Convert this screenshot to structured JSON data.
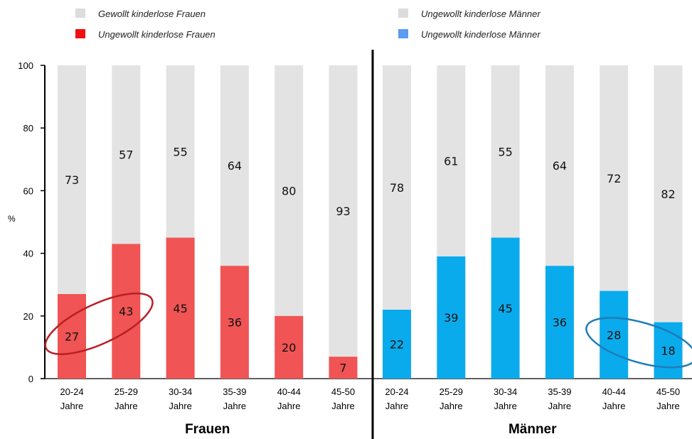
{
  "chart_data": {
    "type": "bar",
    "stacked": true,
    "y_unit": "%",
    "ylim": [
      0,
      100
    ],
    "yticks": [
      0,
      20,
      40,
      60,
      80,
      100
    ],
    "legend": [
      {
        "label": "Gewollt kinderlose Frauen",
        "color": "#dcdcdc"
      },
      {
        "label": "Ungewollt kinderlose Frauen",
        "color": "#ee1111"
      },
      {
        "label": "Ungewollt kinderlose Männer",
        "color": "#dcdcdc"
      },
      {
        "label": "Ungewollt kinderlose Männer",
        "color": "#5b9bf0"
      }
    ],
    "groups": [
      {
        "name": "Frauen",
        "color_lower": "#f05454",
        "color_upper": "#e3e3e3",
        "categories": [
          [
            "20-24",
            "Jahre"
          ],
          [
            "25-29",
            "Jahre"
          ],
          [
            "30-34",
            "Jahre"
          ],
          [
            "35-39",
            "Jahre"
          ],
          [
            "40-44",
            "Jahre"
          ],
          [
            "45-50",
            "Jahre"
          ]
        ],
        "lower_values": [
          27,
          43,
          45,
          36,
          20,
          7
        ],
        "upper_values": [
          73,
          57,
          55,
          64,
          80,
          93
        ],
        "highlight_categories": [
          0,
          1
        ],
        "highlight_color": "#b81f24"
      },
      {
        "name": "Männer",
        "color_lower": "#0aabec",
        "color_upper": "#e3e3e3",
        "categories": [
          [
            "20-24",
            "Jahre"
          ],
          [
            "25-29",
            "Jahre"
          ],
          [
            "30-34",
            "Jahre"
          ],
          [
            "35-39",
            "Jahre"
          ],
          [
            "40-44",
            "Jahre"
          ],
          [
            "45-50",
            "Jahre"
          ]
        ],
        "lower_values": [
          22,
          39,
          45,
          36,
          28,
          18
        ],
        "upper_values": [
          78,
          61,
          55,
          64,
          72,
          82
        ],
        "highlight_categories": [
          4,
          5
        ],
        "highlight_color": "#1f7cb8"
      }
    ]
  }
}
